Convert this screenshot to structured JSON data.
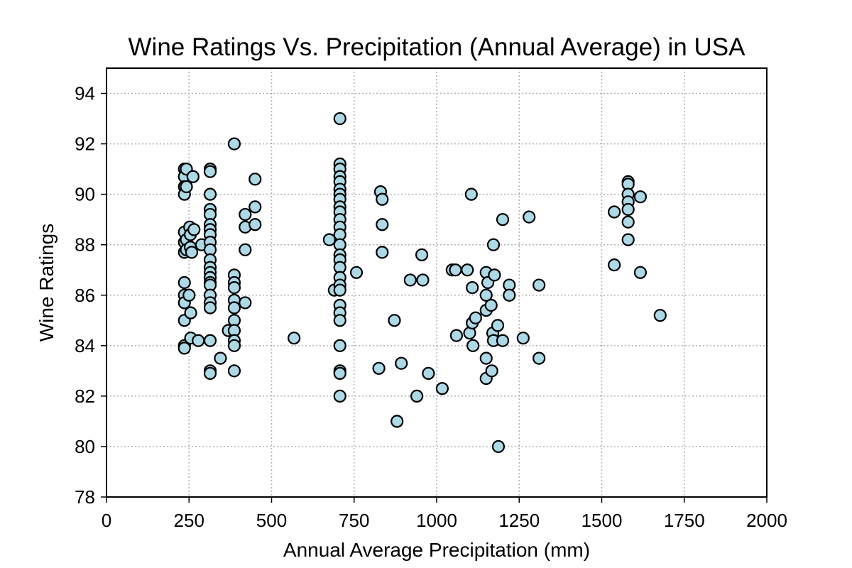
{
  "chart_data": {
    "type": "scatter",
    "title": "Wine Ratings Vs. Precipitation (Annual Average) in USA",
    "xlabel": "Annual Average Precipitation (mm)",
    "ylabel": "Wine Ratings",
    "xlim": [
      0,
      2000
    ],
    "ylim": [
      78,
      95
    ],
    "xticks": [
      0,
      250,
      500,
      750,
      1000,
      1250,
      1500,
      1750,
      2000
    ],
    "yticks": [
      78,
      80,
      82,
      84,
      86,
      88,
      90,
      92,
      94
    ],
    "grid": true,
    "marker_color": "#add8e6",
    "marker_edge_color": "#000000",
    "points": [
      [
        236,
        91.0
      ],
      [
        236,
        90.7
      ],
      [
        236,
        90.3
      ],
      [
        236,
        90.0
      ],
      [
        236,
        88.5
      ],
      [
        236,
        88.1
      ],
      [
        236,
        87.7
      ],
      [
        236,
        86.5
      ],
      [
        236,
        86.0
      ],
      [
        236,
        85.7
      ],
      [
        236,
        85.0
      ],
      [
        236,
        84.0
      ],
      [
        236,
        83.9
      ],
      [
        242,
        91.0
      ],
      [
        242,
        90.3
      ],
      [
        242,
        88.2
      ],
      [
        242,
        87.8
      ],
      [
        250,
        86.0
      ],
      [
        252,
        88.7
      ],
      [
        254,
        88.4
      ],
      [
        254,
        87.9
      ],
      [
        255,
        85.3
      ],
      [
        255,
        84.3
      ],
      [
        258,
        87.7
      ],
      [
        262,
        90.7
      ],
      [
        265,
        88.6
      ],
      [
        278,
        84.2
      ],
      [
        288,
        88.0
      ],
      [
        314,
        91.0
      ],
      [
        314,
        90.9
      ],
      [
        314,
        90.0
      ],
      [
        314,
        89.4
      ],
      [
        314,
        89.2
      ],
      [
        314,
        88.8
      ],
      [
        314,
        88.6
      ],
      [
        314,
        88.4
      ],
      [
        314,
        88.1
      ],
      [
        314,
        87.8
      ],
      [
        314,
        87.4
      ],
      [
        314,
        87.1
      ],
      [
        314,
        86.9
      ],
      [
        314,
        86.7
      ],
      [
        314,
        86.5
      ],
      [
        314,
        86.4
      ],
      [
        314,
        86.0
      ],
      [
        314,
        85.7
      ],
      [
        314,
        85.5
      ],
      [
        314,
        84.2
      ],
      [
        314,
        83.0
      ],
      [
        314,
        82.9
      ],
      [
        345,
        83.5
      ],
      [
        369,
        84.6
      ],
      [
        387,
        92.0
      ],
      [
        387,
        86.8
      ],
      [
        387,
        86.5
      ],
      [
        387,
        86.3
      ],
      [
        387,
        85.8
      ],
      [
        387,
        85.5
      ],
      [
        387,
        85.0
      ],
      [
        387,
        84.6
      ],
      [
        387,
        84.2
      ],
      [
        387,
        84.0
      ],
      [
        387,
        83.0
      ],
      [
        420,
        89.2
      ],
      [
        420,
        88.7
      ],
      [
        420,
        87.8
      ],
      [
        420,
        85.7
      ],
      [
        450,
        90.6
      ],
      [
        450,
        89.5
      ],
      [
        450,
        88.8
      ],
      [
        568,
        84.3
      ],
      [
        675,
        88.2
      ],
      [
        690,
        86.2
      ],
      [
        707,
        93.0
      ],
      [
        707,
        91.2
      ],
      [
        707,
        91.0
      ],
      [
        707,
        90.7
      ],
      [
        707,
        90.5
      ],
      [
        707,
        90.2
      ],
      [
        707,
        90.0
      ],
      [
        707,
        89.8
      ],
      [
        707,
        89.5
      ],
      [
        707,
        89.3
      ],
      [
        707,
        89.0
      ],
      [
        707,
        88.7
      ],
      [
        707,
        88.4
      ],
      [
        707,
        88.0
      ],
      [
        707,
        87.6
      ],
      [
        707,
        87.4
      ],
      [
        707,
        87.1
      ],
      [
        707,
        86.7
      ],
      [
        707,
        86.4
      ],
      [
        707,
        86.2
      ],
      [
        707,
        85.6
      ],
      [
        707,
        85.3
      ],
      [
        707,
        85.0
      ],
      [
        707,
        84.0
      ],
      [
        707,
        83.0
      ],
      [
        707,
        82.9
      ],
      [
        707,
        82.0
      ],
      [
        757,
        86.9
      ],
      [
        825,
        83.1
      ],
      [
        830,
        90.1
      ],
      [
        835,
        89.8
      ],
      [
        835,
        88.8
      ],
      [
        835,
        87.7
      ],
      [
        872,
        85.0
      ],
      [
        880,
        81.0
      ],
      [
        893,
        83.3
      ],
      [
        920,
        86.6
      ],
      [
        940,
        82.0
      ],
      [
        955,
        87.6
      ],
      [
        958,
        86.6
      ],
      [
        975,
        82.9
      ],
      [
        1017,
        82.3
      ],
      [
        1047,
        87.0
      ],
      [
        1057,
        87.0
      ],
      [
        1060,
        84.4
      ],
      [
        1093,
        87.0
      ],
      [
        1100,
        84.5
      ],
      [
        1105,
        90.0
      ],
      [
        1108,
        86.3
      ],
      [
        1108,
        84.9
      ],
      [
        1110,
        84.0
      ],
      [
        1118,
        85.1
      ],
      [
        1150,
        86.9
      ],
      [
        1150,
        86.0
      ],
      [
        1150,
        85.4
      ],
      [
        1150,
        83.5
      ],
      [
        1150,
        82.7
      ],
      [
        1155,
        86.5
      ],
      [
        1165,
        85.6
      ],
      [
        1167,
        83.0
      ],
      [
        1170,
        84.5
      ],
      [
        1172,
        84.2
      ],
      [
        1172,
        88.0
      ],
      [
        1175,
        86.8
      ],
      [
        1185,
        84.8
      ],
      [
        1187,
        80.0
      ],
      [
        1200,
        89.0
      ],
      [
        1200,
        84.2
      ],
      [
        1220,
        86.4
      ],
      [
        1220,
        86.0
      ],
      [
        1262,
        84.3
      ],
      [
        1280,
        89.1
      ],
      [
        1310,
        86.4
      ],
      [
        1310,
        83.5
      ],
      [
        1538,
        89.3
      ],
      [
        1538,
        87.2
      ],
      [
        1580,
        90.5
      ],
      [
        1580,
        90.4
      ],
      [
        1580,
        90.0
      ],
      [
        1580,
        89.7
      ],
      [
        1580,
        89.4
      ],
      [
        1580,
        88.9
      ],
      [
        1580,
        88.2
      ],
      [
        1617,
        89.9
      ],
      [
        1617,
        86.9
      ],
      [
        1677,
        85.2
      ]
    ]
  }
}
